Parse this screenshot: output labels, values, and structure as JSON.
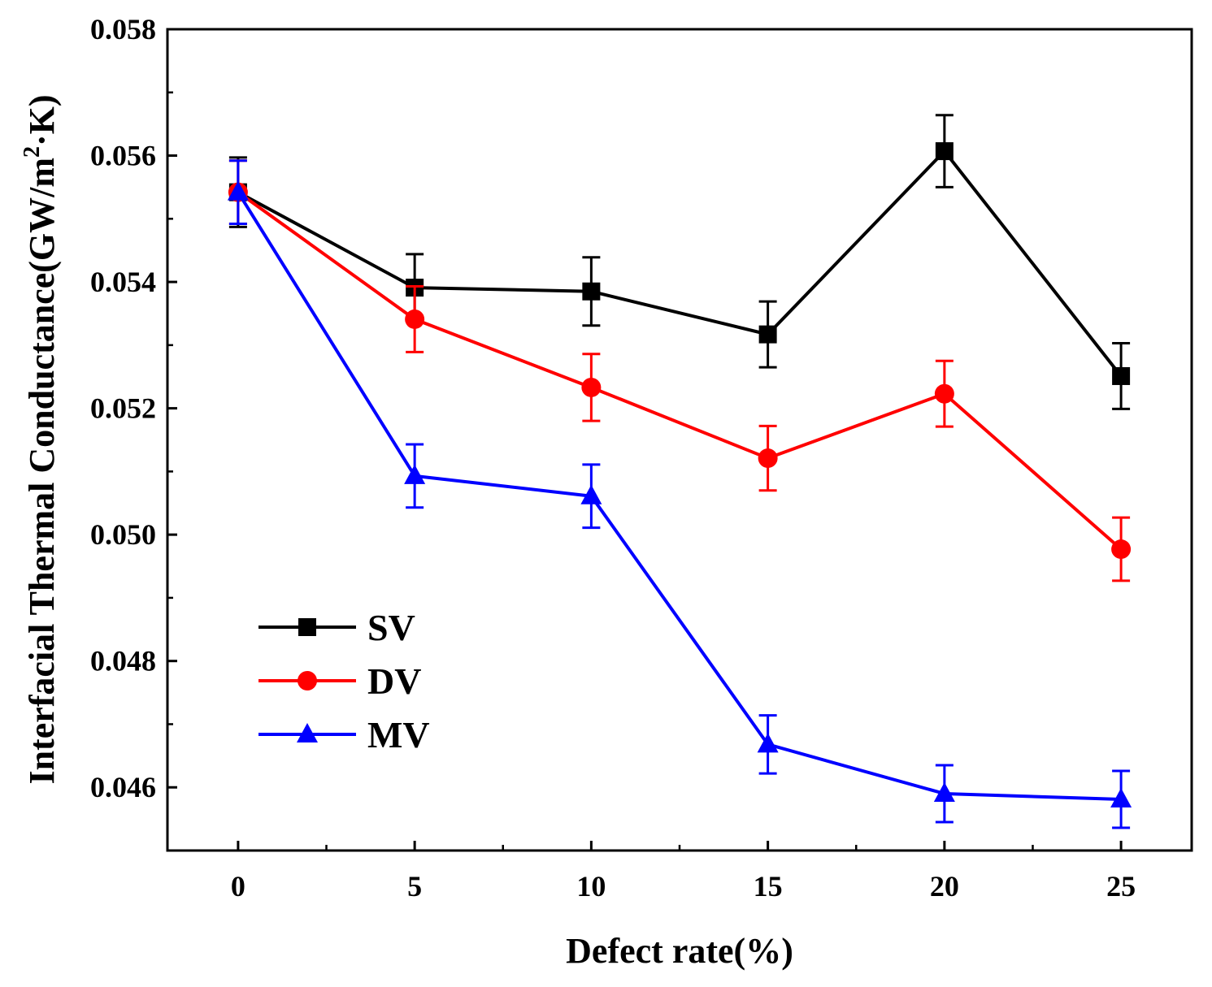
{
  "chart_data": {
    "type": "line",
    "title": "",
    "xlabel": "Defect rate(%)",
    "ylabel": "Interfacial Thermal Conductance(GW/m²·K)",
    "ylabel_parts": {
      "main": "Interfacial Thermal Conductance(GW/m",
      "sup": "2",
      "tail": "·K)"
    },
    "x": [
      0,
      5,
      10,
      15,
      20,
      25
    ],
    "x_tick_labels": [
      "0",
      "5",
      "10",
      "15",
      "20",
      "25"
    ],
    "xlim": [
      -2,
      27
    ],
    "ylim": [
      0.045,
      0.058
    ],
    "y_ticks": [
      0.046,
      0.048,
      0.05,
      0.052,
      0.054,
      0.056,
      0.058
    ],
    "y_tick_labels": [
      "0.046",
      "0.048",
      "0.050",
      "0.052",
      "0.054",
      "0.056",
      "0.058"
    ],
    "grid": false,
    "legend_position": "bottom-left",
    "series": [
      {
        "name": "SV",
        "color": "#000000",
        "marker": "square",
        "values": [
          0.05542,
          0.05391,
          0.05385,
          0.05317,
          0.05607,
          0.05251
        ],
        "errors": [
          0.00055,
          0.00053,
          0.00054,
          0.00052,
          0.00057,
          0.00052
        ]
      },
      {
        "name": "DV",
        "color": "#ff0000",
        "marker": "circle",
        "values": [
          0.05542,
          0.05341,
          0.05233,
          0.05121,
          0.05223,
          0.04977
        ],
        "errors": [
          0.0005,
          0.00052,
          0.00053,
          0.00051,
          0.00052,
          0.0005
        ]
      },
      {
        "name": "MV",
        "color": "#0000ff",
        "marker": "triangle",
        "values": [
          0.05542,
          0.05093,
          0.05061,
          0.04668,
          0.0459,
          0.04581
        ],
        "errors": [
          0.0005,
          0.0005,
          0.0005,
          0.00046,
          0.00045,
          0.00045
        ]
      }
    ]
  }
}
